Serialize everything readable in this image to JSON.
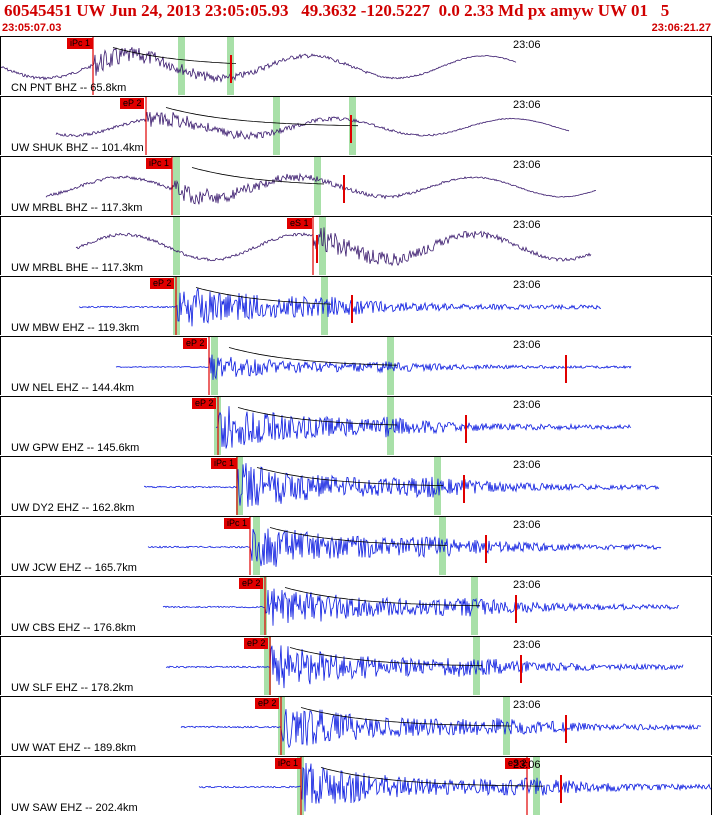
{
  "header": {
    "title": "60545451 UW Jun 24, 2013 23:05:05.93   49.3632 -120.5227  0.0 2.33 Md px amyw UW 01   5",
    "start_time": "23:05:07.03",
    "end_time": "23:06:21.27"
  },
  "colors": {
    "broadband": "#3a1a6e",
    "shortperiod": "#0a1ae0",
    "pick": "#e00000",
    "window": "#a8e0a8",
    "coda": "#000000"
  },
  "channels": [
    {
      "label": "CN PNT BHZ --  65.8km",
      "time_label": "23:06",
      "pick_label": "iPc 1",
      "second_pick": "",
      "type": "broadband"
    },
    {
      "label": "UW SHUK BHZ -- 101.4km",
      "time_label": "23:06",
      "pick_label": "eP 2",
      "second_pick": "",
      "type": "broadband"
    },
    {
      "label": "UW MRBL BHZ -- 117.3km",
      "time_label": "23:06",
      "pick_label": "iPc 1",
      "second_pick": "",
      "type": "broadband"
    },
    {
      "label": "UW MRBL BHE -- 117.3km",
      "time_label": "23:06",
      "pick_label": "eS 1",
      "second_pick": "",
      "type": "broadband"
    },
    {
      "label": "UW MBW EHZ -- 119.3km",
      "time_label": "23:06",
      "pick_label": "eP 2",
      "second_pick": "",
      "type": "shortperiod"
    },
    {
      "label": "UW NEL EHZ -- 144.4km",
      "time_label": "23:06",
      "pick_label": "eP 2",
      "second_pick": "",
      "type": "shortperiod"
    },
    {
      "label": "UW GPW EHZ -- 145.6km",
      "time_label": "23:06",
      "pick_label": "eP 2",
      "second_pick": "",
      "type": "shortperiod"
    },
    {
      "label": "UW DY2 EHZ -- 162.8km",
      "time_label": "23:06",
      "pick_label": "iPc 1",
      "second_pick": "",
      "type": "shortperiod"
    },
    {
      "label": "UW JCW EHZ -- 165.7km",
      "time_label": "23:06",
      "pick_label": "iPc 1",
      "second_pick": "",
      "type": "shortperiod"
    },
    {
      "label": "UW CBS EHZ -- 176.8km",
      "time_label": "23:06",
      "pick_label": "eP 2",
      "second_pick": "",
      "type": "shortperiod"
    },
    {
      "label": "UW SLF EHZ -- 178.2km",
      "time_label": "23:06",
      "pick_label": "eP 2",
      "second_pick": "",
      "type": "shortperiod"
    },
    {
      "label": "UW WAT EHZ -- 189.8km",
      "time_label": "23:06",
      "pick_label": "eP 2",
      "second_pick": "",
      "type": "shortperiod"
    },
    {
      "label": "UW SAW EHZ -- 202.4km",
      "time_label": "23:06",
      "pick_label": "iPc 1",
      "second_pick": "eS 2",
      "type": "shortperiod"
    }
  ]
}
